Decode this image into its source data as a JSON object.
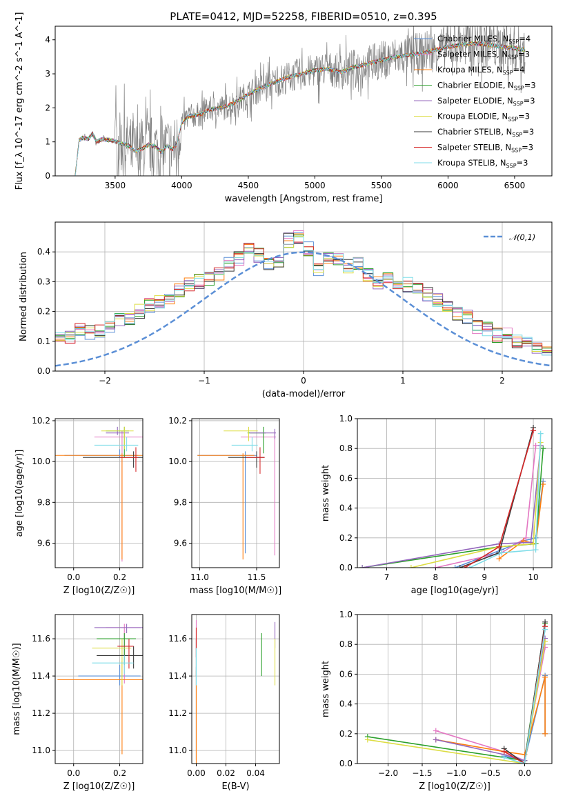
{
  "colors": [
    "#5b8fd6",
    "#e377c2",
    "#ff7f0e",
    "#2ca02c",
    "#9467bd",
    "#dddd44",
    "#3a3a3a",
    "#d62728",
    "#7fdde8"
  ],
  "data_color": "#808080",
  "normal_color": "#5b8fd6",
  "chart_data": [
    {
      "id": "spectrum",
      "type": "line",
      "title": "PLATE=0412, MJD=52258, FIBERID=0510, z=0.395",
      "xlabel": "wavelength [Angstrom, rest frame]",
      "ylabel": "Flux [f_λ 10^-17 erg cm^-2 s^-1 A^-1]",
      "xlim": [
        3050,
        6780
      ],
      "ylim": [
        0,
        4.4
      ],
      "xticks": [
        3500,
        4000,
        4500,
        5000,
        5500,
        6000,
        6500
      ],
      "yticks": [
        0,
        1,
        2,
        3,
        4
      ],
      "grid": false,
      "legend_position": "top-right",
      "x_start": 3200,
      "x_end": 6580,
      "model_anchors": [
        [
          3200,
          0
        ],
        [
          3230,
          1.05
        ],
        [
          3260,
          1.12
        ],
        [
          3300,
          1.08
        ],
        [
          3330,
          1.25
        ],
        [
          3360,
          1.0
        ],
        [
          3400,
          1.08
        ],
        [
          3450,
          1.05
        ],
        [
          3500,
          1.02
        ],
        [
          3550,
          0.95
        ],
        [
          3600,
          0.9
        ],
        [
          3650,
          0.72
        ],
        [
          3700,
          0.78
        ],
        [
          3750,
          0.92
        ],
        [
          3800,
          0.86
        ],
        [
          3850,
          0.7
        ],
        [
          3890,
          0.9
        ],
        [
          3930,
          0.78
        ],
        [
          3960,
          0.9
        ],
        [
          4000,
          1.55
        ],
        [
          4050,
          1.75
        ],
        [
          4100,
          1.78
        ],
        [
          4150,
          1.82
        ],
        [
          4200,
          1.95
        ],
        [
          4300,
          2.0
        ],
        [
          4400,
          2.15
        ],
        [
          4500,
          2.4
        ],
        [
          4600,
          2.6
        ],
        [
          4700,
          2.75
        ],
        [
          4800,
          2.9
        ],
        [
          4900,
          3.0
        ],
        [
          5000,
          3.1
        ],
        [
          5100,
          3.15
        ],
        [
          5200,
          3.05
        ],
        [
          5300,
          3.2
        ],
        [
          5400,
          3.3
        ],
        [
          5500,
          3.4
        ],
        [
          5600,
          3.5
        ],
        [
          5700,
          3.55
        ],
        [
          5800,
          3.6
        ],
        [
          5900,
          3.7
        ],
        [
          6000,
          3.8
        ],
        [
          6100,
          3.85
        ],
        [
          6200,
          3.9
        ],
        [
          6300,
          3.85
        ],
        [
          6400,
          3.8
        ],
        [
          6500,
          3.75
        ],
        [
          6580,
          3.7
        ]
      ],
      "series": [
        {
          "name": "Chabrier MILES, N_SSP=4",
          "ssp": "4"
        },
        {
          "name": "Salpeter MILES, N_SSP=3",
          "ssp": "3"
        },
        {
          "name": "Kroupa MILES, N_SSP=4",
          "ssp": "4"
        },
        {
          "name": "Chabrier ELODIE, N_SSP=3",
          "ssp": "3"
        },
        {
          "name": "Salpeter ELODIE, N_SSP=3",
          "ssp": "3"
        },
        {
          "name": "Kroupa ELODIE, N_SSP=3",
          "ssp": "3"
        },
        {
          "name": "Chabrier STELIB, N_SSP=3",
          "ssp": "3"
        },
        {
          "name": "Salpeter STELIB, N_SSP=3",
          "ssp": "3"
        },
        {
          "name": "Kroupa STELIB, N_SSP=3",
          "ssp": "3"
        }
      ]
    },
    {
      "id": "residuals",
      "type": "histogram",
      "xlabel": "(data-model)/error",
      "ylabel": "Normed distribution",
      "xlim": [
        -2.5,
        2.5
      ],
      "ylim": [
        0,
        0.5
      ],
      "xticks": [
        -2,
        -1,
        0,
        1,
        2
      ],
      "yticks": [
        0.0,
        0.1,
        0.2,
        0.3,
        0.4
      ],
      "grid": true,
      "legend": "𝒩(0,1)",
      "legend_position": "top-right",
      "bin_width": 0.1,
      "base_shape": [
        0.02,
        0.03,
        0.03,
        0.04,
        0.04,
        0.05,
        0.06,
        0.08,
        0.09,
        0.12,
        0.12,
        0.11,
        0.14,
        0.13,
        0.13,
        0.15,
        0.17,
        0.17,
        0.2,
        0.22,
        0.23,
        0.25,
        0.27,
        0.29,
        0.3,
        0.31,
        0.33,
        0.36,
        0.38,
        0.41,
        0.39,
        0.36,
        0.37,
        0.44,
        0.45,
        0.41,
        0.34,
        0.38,
        0.37,
        0.35,
        0.36,
        0.32,
        0.3,
        0.32,
        0.28,
        0.29,
        0.27,
        0.26,
        0.24,
        0.21,
        0.19,
        0.18,
        0.15,
        0.14,
        0.12,
        0.13,
        0.1,
        0.09,
        0.07,
        0.06,
        0.05,
        0.06,
        0.04,
        0.04,
        0.03,
        0.03,
        0.02,
        0.03,
        0.02,
        0.02
      ]
    },
    {
      "id": "age_vs_Z",
      "type": "errorbar",
      "xlabel": "Z [log10(Z/Z☉)]",
      "ylabel": "age [log10(age/yr)]",
      "xlim": [
        -0.08,
        0.3
      ],
      "ylim": [
        9.48,
        10.21
      ],
      "xticks": [
        0.0,
        0.2
      ],
      "yticks": [
        9.6,
        9.8,
        10.0,
        10.2
      ],
      "grid": true,
      "points": [
        {
          "x": 0.2,
          "xerr": [
            0.24,
            0.08
          ],
          "y": 10.03,
          "yerr": [
            0.01,
            0.03
          ]
        },
        {
          "x": 0.21,
          "xerr": [
            0.12,
            0.09
          ],
          "y": 10.12,
          "yerr": [
            0.61,
            0.03
          ]
        },
        {
          "x": 0.21,
          "xerr": [
            0.29,
            0.09
          ],
          "y": 10.03,
          "yerr": [
            0.51,
            0.01
          ]
        },
        {
          "x": 0.22,
          "xerr": [
            0.08,
            0.02
          ],
          "y": 10.15,
          "yerr": [
            0.13,
            0.02
          ]
        },
        {
          "x": 0.19,
          "xerr": [
            0.05,
            0.05
          ],
          "y": 10.14,
          "yerr": [
            0.01,
            0.03
          ]
        },
        {
          "x": 0.22,
          "xerr": [
            0.1,
            0.04
          ],
          "y": 10.15,
          "yerr": [
            0.09,
            0.02
          ]
        },
        {
          "x": 0.26,
          "xerr": [
            0.22,
            0.04
          ],
          "y": 10.02,
          "yerr": [
            0.05,
            0.03
          ]
        },
        {
          "x": 0.27,
          "xerr": [
            0.07,
            0.01
          ],
          "y": 10.02,
          "yerr": [
            0.07,
            0.05
          ]
        },
        {
          "x": 0.23,
          "xerr": [
            0.14,
            0.05
          ],
          "y": 10.08,
          "yerr": [
            0.03,
            0.04
          ]
        }
      ]
    },
    {
      "id": "age_vs_mass",
      "type": "errorbar",
      "xlabel": "mass [log10(M/M☉)]",
      "ylabel": "",
      "xlim": [
        10.93,
        11.7
      ],
      "ylim": [
        9.48,
        10.21
      ],
      "xticks": [
        11.0,
        11.5
      ],
      "yticks": [
        9.6,
        9.8,
        10.0,
        10.2
      ],
      "grid": true,
      "points": [
        {
          "x": 11.4,
          "xerr": [
            0.42,
            0.1
          ],
          "y": 10.03,
          "yerr": [
            0.48,
            0.02
          ]
        },
        {
          "x": 11.66,
          "xerr": [
            0.3,
            0.01
          ],
          "y": 10.12,
          "yerr": [
            0.58,
            0.03
          ]
        },
        {
          "x": 11.38,
          "xerr": [
            0.4,
            0.1
          ],
          "y": 10.03,
          "yerr": [
            0.51,
            0.01
          ]
        },
        {
          "x": 11.56,
          "xerr": [
            0.14,
            0.02
          ],
          "y": 10.14,
          "yerr": [
            0.1,
            0.03
          ]
        },
        {
          "x": 11.66,
          "xerr": [
            0.22,
            0.01
          ],
          "y": 10.14,
          "yerr": [
            0.03,
            0.02
          ]
        },
        {
          "x": 11.43,
          "xerr": [
            0.22,
            0.08
          ],
          "y": 10.15,
          "yerr": [
            0.05,
            0.02
          ]
        },
        {
          "x": 11.5,
          "xerr": [
            0.25,
            0.07
          ],
          "y": 10.02,
          "yerr": [
            0.05,
            0.03
          ]
        },
        {
          "x": 11.53,
          "xerr": [
            0.12,
            0.04
          ],
          "y": 10.02,
          "yerr": [
            0.08,
            0.05
          ]
        },
        {
          "x": 11.46,
          "xerr": [
            0.18,
            0.05
          ],
          "y": 10.08,
          "yerr": [
            0.03,
            0.04
          ]
        }
      ]
    },
    {
      "id": "weight_vs_age",
      "type": "line",
      "xlabel": "age [log10(age/yr)]",
      "ylabel": "mass weight",
      "xlim": [
        6.4,
        10.38
      ],
      "ylim": [
        0,
        1
      ],
      "xticks": [
        7,
        8,
        9,
        10
      ],
      "yticks": [
        0.0,
        0.2,
        0.4,
        0.6,
        0.8,
        1.0
      ],
      "grid": true,
      "series": [
        {
          "x": [
            8.4,
            9.35,
            9.8,
            10.05,
            10.2
          ],
          "y": [
            0,
            0.12,
            0.18,
            0.2,
            0.58
          ]
        },
        {
          "x": [
            8.0,
            9.35,
            9.85,
            10.05
          ],
          "y": [
            0,
            0.1,
            0.2,
            0.82
          ]
        },
        {
          "x": [
            9.3,
            9.8,
            10.05,
            10.2
          ],
          "y": [
            0.06,
            0.18,
            0.16,
            0.56
          ]
        },
        {
          "x": [
            6.5,
            9.3,
            10.05,
            10.2
          ],
          "y": [
            0,
            0.14,
            0.16,
            0.8
          ]
        },
        {
          "x": [
            6.5,
            9.3,
            9.95,
            10.15
          ],
          "y": [
            0,
            0.16,
            0.17,
            0.82
          ]
        },
        {
          "x": [
            7.5,
            9.3,
            10.0,
            10.15
          ],
          "y": [
            0,
            0.14,
            0.16,
            0.84
          ]
        },
        {
          "x": [
            8.5,
            9.3,
            10.0
          ],
          "y": [
            0,
            0.1,
            0.94
          ]
        },
        {
          "x": [
            8.6,
            9.3,
            10.0
          ],
          "y": [
            0,
            0.14,
            0.92
          ]
        },
        {
          "x": [
            8.7,
            9.35,
            10.05,
            10.15
          ],
          "y": [
            0,
            0.1,
            0.12,
            0.9
          ]
        }
      ]
    },
    {
      "id": "mass_vs_Z",
      "type": "errorbar",
      "xlabel": "Z [log10(Z/Z☉)]",
      "ylabel": "mass [log10(M/M☉)]",
      "xlim": [
        -0.08,
        0.3
      ],
      "ylim": [
        10.93,
        11.73
      ],
      "xticks": [
        0.0,
        0.2
      ],
      "yticks": [
        11.0,
        11.2,
        11.4,
        11.6
      ],
      "grid": true,
      "points": [
        {
          "x": 0.2,
          "xerr": [
            0.18,
            0.09
          ],
          "y": 11.4,
          "yerr": [
            0.05,
            0.06
          ]
        },
        {
          "x": 0.22,
          "xerr": [
            0.08,
            0.07
          ],
          "y": 11.66,
          "yerr": [
            0.3,
            0.02
          ]
        },
        {
          "x": 0.21,
          "xerr": [
            0.28,
            0.09
          ],
          "y": 11.38,
          "yerr": [
            0.4,
            0.1
          ]
        },
        {
          "x": 0.22,
          "xerr": [
            0.12,
            0.05
          ],
          "y": 11.6,
          "yerr": [
            0.14,
            0.03
          ]
        },
        {
          "x": 0.23,
          "xerr": [
            0.14,
            0.07
          ],
          "y": 11.66,
          "yerr": [
            0.03,
            0.02
          ]
        },
        {
          "x": 0.21,
          "xerr": [
            0.13,
            0.04
          ],
          "y": 11.55,
          "yerr": [
            0.2,
            0.05
          ]
        },
        {
          "x": 0.26,
          "xerr": [
            0.16,
            0.04
          ],
          "y": 11.51,
          "yerr": [
            0.07,
            0.05
          ]
        },
        {
          "x": 0.24,
          "xerr": [
            0.05,
            0.02
          ],
          "y": 11.56,
          "yerr": [
            0.12,
            0.04
          ]
        },
        {
          "x": 0.22,
          "xerr": [
            0.14,
            0.04
          ],
          "y": 11.47,
          "yerr": [
            0.06,
            0.04
          ]
        }
      ]
    },
    {
      "id": "mass_vs_ebv",
      "type": "errorbar",
      "xlabel": "E(B-V)",
      "ylabel": "",
      "xlim": [
        -0.003,
        0.056
      ],
      "ylim": [
        10.93,
        11.73
      ],
      "xticks": [
        0.0,
        0.02,
        0.04
      ],
      "yticks": [
        11.0,
        11.2,
        11.4,
        11.6
      ],
      "grid": true,
      "points": [
        {
          "x": 0.0,
          "xerr": [
            0,
            0
          ],
          "y": 11.4,
          "yerr": [
            0.45,
            0.05
          ]
        },
        {
          "x": 0.0,
          "xerr": [
            0,
            0
          ],
          "y": 11.6,
          "yerr": [
            0.1,
            0.1
          ]
        },
        {
          "x": 0.0,
          "xerr": [
            0,
            0
          ],
          "y": 11.38,
          "yerr": [
            0.45,
            0.05
          ]
        },
        {
          "x": 0.044,
          "xerr": [
            0,
            0
          ],
          "y": 11.5,
          "yerr": [
            0.1,
            0.13
          ]
        },
        {
          "x": 0.053,
          "xerr": [
            0,
            0
          ],
          "y": 11.6,
          "yerr": [
            0.05,
            0.09
          ]
        },
        {
          "x": 0.053,
          "xerr": [
            0,
            0
          ],
          "y": 11.5,
          "yerr": [
            0.15,
            0.1
          ]
        },
        {
          "x": 0.0,
          "xerr": [
            0,
            0
          ],
          "y": 11.5,
          "yerr": [
            0.1,
            0.1
          ]
        },
        {
          "x": 0.0,
          "xerr": [
            0,
            0
          ],
          "y": 11.58,
          "yerr": [
            0.08,
            0.08
          ]
        },
        {
          "x": 0.0,
          "xerr": [
            0,
            0
          ],
          "y": 11.45,
          "yerr": [
            0.1,
            0.1
          ]
        }
      ]
    },
    {
      "id": "weight_vs_Z",
      "type": "line",
      "xlabel": "Z [log10(Z/Z☉)]",
      "ylabel": "mass weight",
      "xlim": [
        -2.45,
        0.4
      ],
      "ylim": [
        0,
        1
      ],
      "xticks": [
        -2.0,
        -1.5,
        -1.0,
        -0.5,
        0.0
      ],
      "yticks": [
        0.0,
        0.2,
        0.4,
        0.6,
        0.8,
        1.0
      ],
      "grid": true,
      "series": [
        {
          "x": [
            -0.3,
            0.0,
            0.3,
            0.3
          ],
          "y": [
            0.05,
            0.02,
            0.59,
            0.2
          ]
        },
        {
          "x": [
            -1.3,
            -0.3,
            0.0,
            0.3
          ],
          "y": [
            0.22,
            0.08,
            0.02,
            0.78
          ]
        },
        {
          "x": [
            -1.3,
            -0.3,
            0.0,
            0.3,
            0.3
          ],
          "y": [
            0.16,
            0.08,
            0.06,
            0.58,
            0.2
          ]
        },
        {
          "x": [
            -2.3,
            0.0,
            0.3
          ],
          "y": [
            0.18,
            0.02,
            0.94
          ]
        },
        {
          "x": [
            -1.3,
            -0.3,
            0.0,
            0.3
          ],
          "y": [
            0.16,
            0.06,
            0.02,
            0.84
          ]
        },
        {
          "x": [
            -2.3,
            0.0,
            0.3
          ],
          "y": [
            0.16,
            0.0,
            0.82
          ]
        },
        {
          "x": [
            -0.3,
            0.0,
            0.3
          ],
          "y": [
            0.1,
            0.0,
            0.95
          ]
        },
        {
          "x": [
            -0.3,
            0.0,
            0.3
          ],
          "y": [
            0.08,
            0.0,
            0.92
          ]
        },
        {
          "x": [
            -0.3,
            0.0,
            0.3
          ],
          "y": [
            0.04,
            0.0,
            0.9
          ]
        }
      ]
    }
  ]
}
